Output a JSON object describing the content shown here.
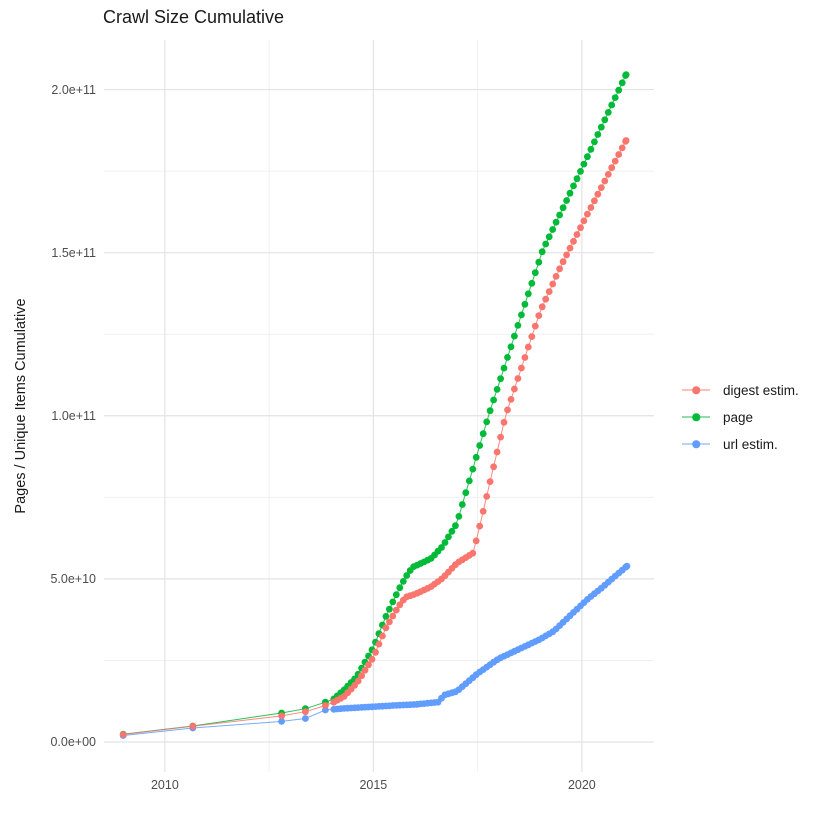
{
  "page_title": "Crawl Size Cumulative",
  "colors": {
    "digest": "#F8766D",
    "page": "#00BA38",
    "url": "#619CFF",
    "grid_major": "#E3E3E3",
    "grid_minor": "#F0F0F0",
    "tick_text": "#4d4d4d",
    "title_text": "#1a1a1a"
  },
  "chart_data": {
    "type": "scatter",
    "title": "Crawl Size Cumulative",
    "xlabel": "",
    "ylabel": "Pages / Unique Items Cumulative",
    "grid": true,
    "legend_position": "right",
    "units": "values in billions (1e9) of pages / unique items",
    "x_axis": {
      "ticks": [
        {
          "label": "2010",
          "year": 2010
        },
        {
          "label": "2015",
          "year": 2015
        },
        {
          "label": "2020",
          "year": 2020
        }
      ],
      "minor_years": [
        2012.5,
        2017.5
      ],
      "range_years": [
        2008.54,
        2021.73
      ]
    },
    "y_axis": {
      "ticks": [
        {
          "label": "0.0e+00",
          "value_billions": 0
        },
        {
          "label": "5.0e+10",
          "value_billions": 50
        },
        {
          "label": "1.0e+11",
          "value_billions": 100
        },
        {
          "label": "1.5e+11",
          "value_billions": 150
        },
        {
          "label": "2.0e+11",
          "value_billions": 200
        }
      ],
      "minor_values_billions": [
        25,
        75,
        125,
        175
      ],
      "range_billions": [
        -9.2,
        215.2
      ]
    },
    "legend": {
      "items": [
        {
          "label": "digest estim.",
          "color": "#F8766D"
        },
        {
          "label": "page",
          "color": "#00BA38"
        },
        {
          "label": "url estim.",
          "color": "#619CFF"
        }
      ]
    },
    "point_cadence": "one point per crawl: sparse crawls 2009-2013, roughly monthly crawls 2014-2021",
    "series": [
      {
        "name": "digest estim.",
        "color": "#F8766D",
        "anchors_year_billions": [
          [
            2009.0,
            2.3
          ],
          [
            2010.67,
            4.8
          ],
          [
            2012.8,
            8.0
          ],
          [
            2013.37,
            9.3
          ],
          [
            2013.85,
            11.2
          ],
          [
            2014.05,
            12.2
          ],
          [
            2014.3,
            14
          ],
          [
            2014.6,
            18
          ],
          [
            2015.0,
            26
          ],
          [
            2015.3,
            35
          ],
          [
            2015.6,
            41.5
          ],
          [
            2015.77,
            44.4
          ],
          [
            2016.0,
            45.3
          ],
          [
            2016.37,
            47.5
          ],
          [
            2016.66,
            50.2
          ],
          [
            2017.0,
            54.8
          ],
          [
            2017.4,
            58
          ],
          [
            2018.17,
            100
          ],
          [
            2019.0,
            132
          ],
          [
            2019.5,
            146
          ],
          [
            2020.14,
            162
          ],
          [
            2021.06,
            184.4
          ]
        ]
      },
      {
        "name": "page",
        "color": "#00BA38",
        "anchors_year_billions": [
          [
            2009.0,
            2.4
          ],
          [
            2010.67,
            4.9
          ],
          [
            2012.8,
            8.9
          ],
          [
            2013.37,
            10.2
          ],
          [
            2013.85,
            12.2
          ],
          [
            2014.05,
            13.2
          ],
          [
            2014.3,
            16
          ],
          [
            2014.6,
            20
          ],
          [
            2015.0,
            29
          ],
          [
            2015.3,
            38.5
          ],
          [
            2015.6,
            46.5
          ],
          [
            2015.77,
            50.5
          ],
          [
            2015.94,
            53.6
          ],
          [
            2016.25,
            55.4
          ],
          [
            2016.4,
            56.4
          ],
          [
            2016.66,
            60
          ],
          [
            2017.0,
            67
          ],
          [
            2017.76,
            100
          ],
          [
            2018.5,
            129
          ],
          [
            2019.06,
            150.7
          ],
          [
            2020.0,
            175.8
          ],
          [
            2021.06,
            204.6
          ]
        ]
      },
      {
        "name": "url estim.",
        "color": "#619CFF",
        "anchors_year_billions": [
          [
            2009.0,
            2.0
          ],
          [
            2010.67,
            4.3
          ],
          [
            2012.8,
            6.3
          ],
          [
            2013.37,
            7.2
          ],
          [
            2013.85,
            9.8
          ],
          [
            2014.3,
            10.3
          ],
          [
            2015.0,
            10.8
          ],
          [
            2015.5,
            11.2
          ],
          [
            2016.0,
            11.5
          ],
          [
            2016.55,
            12.2
          ],
          [
            2016.7,
            14.4
          ],
          [
            2017.0,
            15.5
          ],
          [
            2017.5,
            21
          ],
          [
            2018.0,
            25.5
          ],
          [
            2018.5,
            28.5
          ],
          [
            2019.0,
            31.5
          ],
          [
            2019.33,
            34
          ],
          [
            2019.74,
            39
          ],
          [
            2020.14,
            43.8
          ],
          [
            2020.5,
            47.5
          ],
          [
            2020.74,
            50.2
          ],
          [
            2021.08,
            53.9
          ]
        ]
      }
    ]
  }
}
